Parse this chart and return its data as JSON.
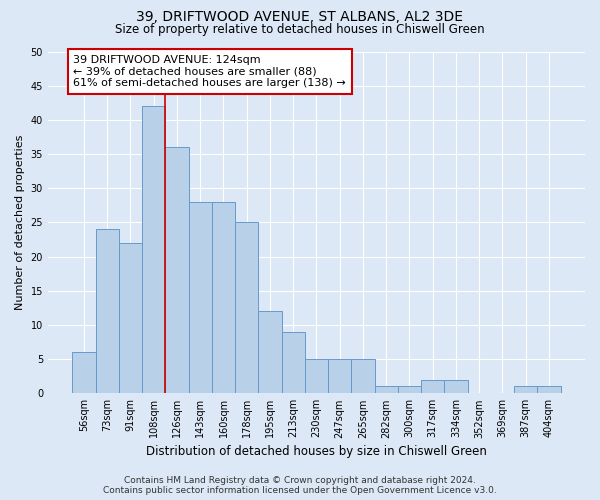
{
  "title1": "39, DRIFTWOOD AVENUE, ST ALBANS, AL2 3DE",
  "title2": "Size of property relative to detached houses in Chiswell Green",
  "xlabel": "Distribution of detached houses by size in Chiswell Green",
  "ylabel": "Number of detached properties",
  "categories": [
    "56sqm",
    "73sqm",
    "91sqm",
    "108sqm",
    "126sqm",
    "143sqm",
    "160sqm",
    "178sqm",
    "195sqm",
    "213sqm",
    "230sqm",
    "247sqm",
    "265sqm",
    "282sqm",
    "300sqm",
    "317sqm",
    "334sqm",
    "352sqm",
    "369sqm",
    "387sqm",
    "404sqm"
  ],
  "values": [
    6,
    24,
    22,
    42,
    36,
    28,
    28,
    25,
    12,
    9,
    5,
    5,
    5,
    1,
    1,
    2,
    2,
    0,
    0,
    1,
    1
  ],
  "bar_color": "#b8d0e8",
  "bar_edge_color": "#6699cc",
  "bar_linewidth": 0.7,
  "vline_color": "#cc0000",
  "ylim": [
    0,
    50
  ],
  "yticks": [
    0,
    5,
    10,
    15,
    20,
    25,
    30,
    35,
    40,
    45,
    50
  ],
  "annotation_line1": "39 DRIFTWOOD AVENUE: 124sqm",
  "annotation_line2": "← 39% of detached houses are smaller (88)",
  "annotation_line3": "61% of semi-detached houses are larger (138) →",
  "annotation_box_color": "#ffffff",
  "annotation_box_edge": "#cc0000",
  "footer1": "Contains HM Land Registry data © Crown copyright and database right 2024.",
  "footer2": "Contains public sector information licensed under the Open Government Licence v3.0.",
  "bg_color": "#dce8f5",
  "plot_bg_color": "#dce8f5",
  "grid_color": "#ffffff",
  "title1_fontsize": 10,
  "title2_fontsize": 8.5,
  "xlabel_fontsize": 8.5,
  "ylabel_fontsize": 8,
  "tick_fontsize": 7,
  "annotation_fontsize": 8,
  "footer_fontsize": 6.5
}
